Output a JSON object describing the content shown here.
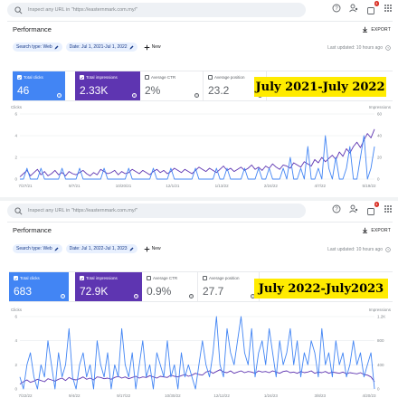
{
  "panel1": {
    "search_placeholder": "Inspect any URL in \"https://easternmark.com.my/\"",
    "title": "Performance",
    "export_label": "EXPORT",
    "filters": [
      {
        "label": "Search type: Web"
      },
      {
        "label": "Date: Jul 1, 2021-Jul 1, 2022"
      }
    ],
    "new_label": "New",
    "updated": "Last updated: 10 hours ago",
    "notification_count": "4",
    "metrics": {
      "clicks": {
        "label": "Total clicks",
        "value": "46"
      },
      "impressions": {
        "label": "Total impressions",
        "value": "2.33K"
      },
      "ctr": {
        "label": "Average CTR",
        "value": "2%"
      },
      "position": {
        "label": "Average position",
        "value": "23.2"
      }
    },
    "banner": "July 2021-July 2022",
    "chart_data": {
      "type": "line",
      "ylabel_left": "Clicks",
      "ylabel_right": "Impressions",
      "yticks_left": [
        "6",
        "4",
        "2",
        "0"
      ],
      "yticks_right": [
        "60",
        "40",
        "20",
        "0"
      ],
      "xticks": [
        "7/27/21",
        "9/7/21",
        "10/20/21",
        "12/1/21",
        "1/13/22",
        "2/24/22",
        "4/7/22",
        "5/19/22"
      ],
      "ylim_left": [
        0,
        6
      ],
      "ylim_right": [
        0,
        60
      ],
      "series": [
        {
          "name": "Clicks",
          "color": "#4285f4",
          "values": [
            0,
            0,
            1,
            0,
            0,
            0,
            1,
            0,
            0,
            0,
            0,
            0,
            1,
            0,
            0,
            0,
            0,
            1,
            0,
            0,
            0,
            0,
            0,
            0,
            1,
            0,
            0,
            0,
            0,
            0,
            0,
            1,
            0,
            0,
            0,
            0,
            0,
            0,
            1,
            0,
            0,
            0,
            0,
            1,
            0,
            0,
            0,
            0,
            0,
            0,
            1,
            0,
            0,
            0,
            0,
            0,
            1,
            0,
            0,
            1,
            0,
            0,
            0,
            0,
            1,
            0,
            0,
            0,
            1,
            0,
            0,
            1,
            0,
            0,
            0,
            1,
            0,
            2,
            0,
            0,
            1,
            0,
            3,
            0,
            0,
            1,
            0,
            4,
            1,
            0,
            2,
            0,
            0,
            1,
            3,
            0,
            0,
            2,
            4,
            0,
            1,
            3
          ]
        },
        {
          "name": "Impressions",
          "color": "#5e35b1",
          "values": [
            2,
            5,
            8,
            3,
            6,
            9,
            4,
            7,
            3,
            5,
            8,
            4,
            6,
            3,
            7,
            5,
            4,
            6,
            8,
            5,
            3,
            6,
            4,
            9,
            7,
            5,
            6,
            8,
            4,
            7,
            5,
            6,
            9,
            7,
            5,
            8,
            6,
            4,
            7,
            9,
            6,
            8,
            5,
            7,
            10,
            8,
            6,
            9,
            7,
            5,
            8,
            11,
            9,
            7,
            10,
            8,
            6,
            9,
            12,
            8,
            10,
            7,
            9,
            11,
            8,
            10,
            13,
            9,
            11,
            8,
            12,
            10,
            14,
            11,
            9,
            13,
            12,
            10,
            15,
            13,
            11,
            16,
            14,
            12,
            18,
            15,
            20,
            16,
            19,
            22,
            18,
            25,
            21,
            28,
            24,
            30,
            34,
            29,
            36,
            42,
            38,
            46
          ]
        }
      ]
    }
  },
  "panel2": {
    "search_placeholder": "Inspect any URL in \"https://easternmark.com.my/\"",
    "title": "Performance",
    "export_label": "EXPORT",
    "filters": [
      {
        "label": "Search type: Web"
      },
      {
        "label": "Date: Jul 1, 2022-Jul 1, 2023"
      }
    ],
    "new_label": "New",
    "updated": "Last updated: 10 hours ago",
    "notification_count": "4",
    "metrics": {
      "clicks": {
        "label": "Total clicks",
        "value": "683"
      },
      "impressions": {
        "label": "Total impressions",
        "value": "72.9K"
      },
      "ctr": {
        "label": "Average CTR",
        "value": "0.9%"
      },
      "position": {
        "label": "Average position",
        "value": "27.7"
      }
    },
    "banner": "July 2022-July2023",
    "chart_data": {
      "type": "line",
      "ylabel_left": "Clicks",
      "ylabel_right": "Impressions",
      "yticks_left": [
        "6",
        "4",
        "2",
        "0"
      ],
      "yticks_right": [
        "1.2K",
        "800",
        "400",
        "0"
      ],
      "xticks": [
        "7/22/22",
        "9/4/22",
        "9/17/22",
        "10/30/22",
        "12/12/22",
        "1/24/23",
        "3/8/23",
        "4/20/23"
      ],
      "ylim_left": [
        0,
        6
      ],
      "ylim_right": [
        0,
        1200
      ],
      "series": [
        {
          "name": "Clicks",
          "color": "#4285f4",
          "values": [
            1,
            0,
            2,
            3,
            1,
            0,
            2,
            1,
            4,
            2,
            0,
            3,
            1,
            2,
            5,
            1,
            0,
            2,
            3,
            1,
            2,
            0,
            4,
            2,
            1,
            3,
            0,
            2,
            1,
            5,
            2,
            1,
            3,
            0,
            2,
            4,
            1,
            2,
            0,
            3,
            2,
            1,
            4,
            1,
            2,
            0,
            3,
            1,
            2,
            1,
            0,
            2,
            4,
            2,
            1,
            3,
            6,
            2,
            1,
            5,
            3,
            2,
            4,
            6,
            3,
            2,
            5,
            1,
            3,
            4,
            2,
            5,
            3,
            1,
            4,
            2,
            3,
            5,
            2,
            4,
            1,
            3,
            2,
            4,
            3,
            1,
            5,
            2,
            3,
            1,
            4,
            2,
            3,
            1,
            2,
            4,
            2,
            3,
            1,
            2,
            3,
            0
          ]
        },
        {
          "name": "Impressions",
          "color": "#5e35b1",
          "values": [
            80,
            120,
            150,
            110,
            130,
            160,
            140,
            120,
            170,
            150,
            130,
            160,
            180,
            140,
            190,
            160,
            150,
            170,
            200,
            160,
            180,
            150,
            200,
            190,
            170,
            180,
            160,
            190,
            210,
            180,
            200,
            170,
            190,
            210,
            180,
            200,
            190,
            220,
            200,
            180,
            210,
            200,
            190,
            230,
            210,
            200,
            220,
            240,
            210,
            230,
            260,
            240,
            230,
            280,
            300,
            260,
            290,
            320,
            280,
            270,
            300,
            260,
            280,
            300,
            270,
            290,
            280,
            260,
            300,
            280,
            290,
            270,
            300,
            280,
            260,
            290,
            300,
            270,
            280,
            260,
            290,
            270,
            280,
            300,
            260,
            280,
            270,
            290,
            260,
            280,
            270,
            260,
            280,
            250,
            270,
            260,
            250,
            270,
            240,
            230,
            200,
            120
          ]
        }
      ]
    }
  },
  "icons": {
    "search": "search-icon",
    "help": "help-icon",
    "people": "people-settings-icon",
    "bell": "notifications-icon",
    "apps": "apps-grid-icon",
    "export": "download-icon",
    "pen": "edit-icon",
    "add": "plus-icon",
    "question": "question-mark-icon"
  },
  "colors": {
    "clicks": "#4285f4",
    "impressions": "#5e35b1",
    "banner": "#ffeb00",
    "chip_bg": "#e8f0fe"
  }
}
